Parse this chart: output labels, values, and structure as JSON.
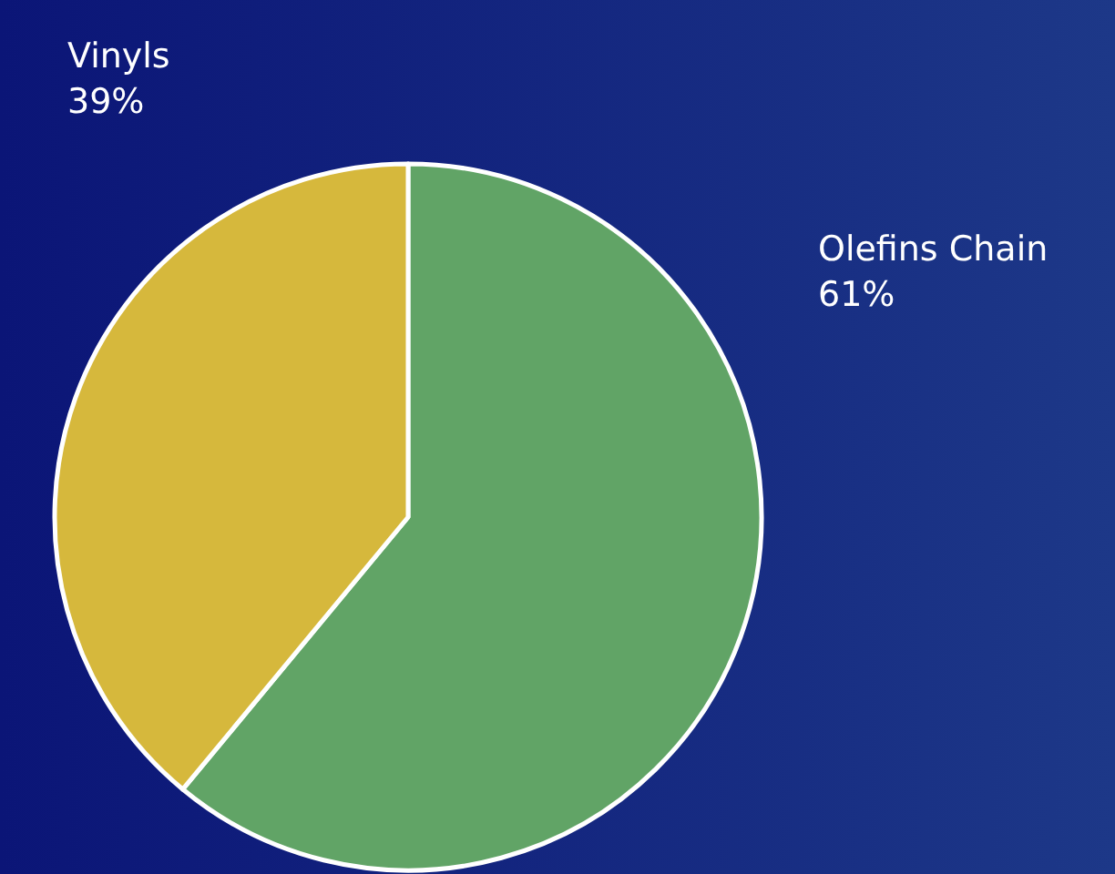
{
  "chart_data": {
    "type": "pie",
    "categories": [
      "Olefins Chain",
      "Vinyls"
    ],
    "values": [
      61,
      39
    ],
    "colors": [
      "#61a466",
      "#d6b83c"
    ],
    "value_labels": [
      "61%",
      "39%"
    ]
  }
}
